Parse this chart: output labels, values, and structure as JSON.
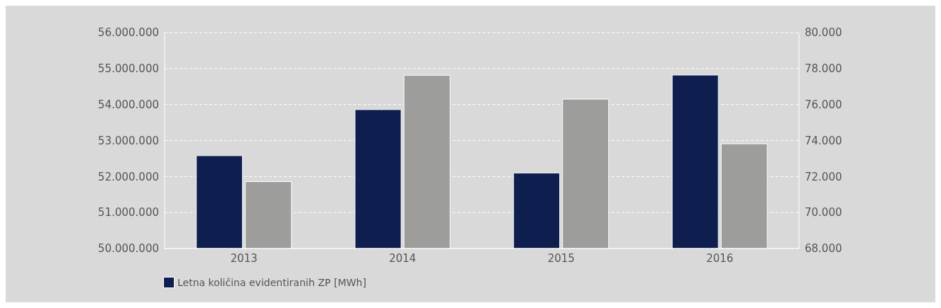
{
  "chart_data": {
    "type": "bar",
    "categories": [
      "2013",
      "2014",
      "2015",
      "2016"
    ],
    "series": [
      {
        "name": "Letna količina evidentiranih ZP [MWh]",
        "color": "#0e1f4f",
        "values": [
          52580000,
          53860000,
          52100000,
          54820000
        ]
      },
      {
        "color": "#9d9d9c",
        "axis": "y2",
        "values": [
          71720,
          77630,
          76300,
          73820
        ]
      }
    ],
    "ylim": [
      50000000,
      56000000
    ],
    "yticks": [
      {
        "value": 50000000,
        "label": "50.000.000"
      },
      {
        "value": 51000000,
        "label": "51.000.000"
      },
      {
        "value": 52000000,
        "label": "52.000.000"
      },
      {
        "value": 53000000,
        "label": "53.000.000"
      },
      {
        "value": 54000000,
        "label": "54.000.000"
      },
      {
        "value": 55000000,
        "label": "55.000.000"
      },
      {
        "value": 56000000,
        "label": "56.000.000"
      }
    ],
    "y2lim": [
      68000,
      80000
    ],
    "y2ticks": [
      {
        "value": 68000,
        "label": "68.000"
      },
      {
        "value": 70000,
        "label": "70.000"
      },
      {
        "value": 72000,
        "label": "72.000"
      },
      {
        "value": 74000,
        "label": "74.000"
      },
      {
        "value": 76000,
        "label": "76.000"
      },
      {
        "value": 78000,
        "label": "78.000"
      },
      {
        "value": 80000,
        "label": "80.000"
      }
    ],
    "grid": "y",
    "legend": "bottom left"
  }
}
